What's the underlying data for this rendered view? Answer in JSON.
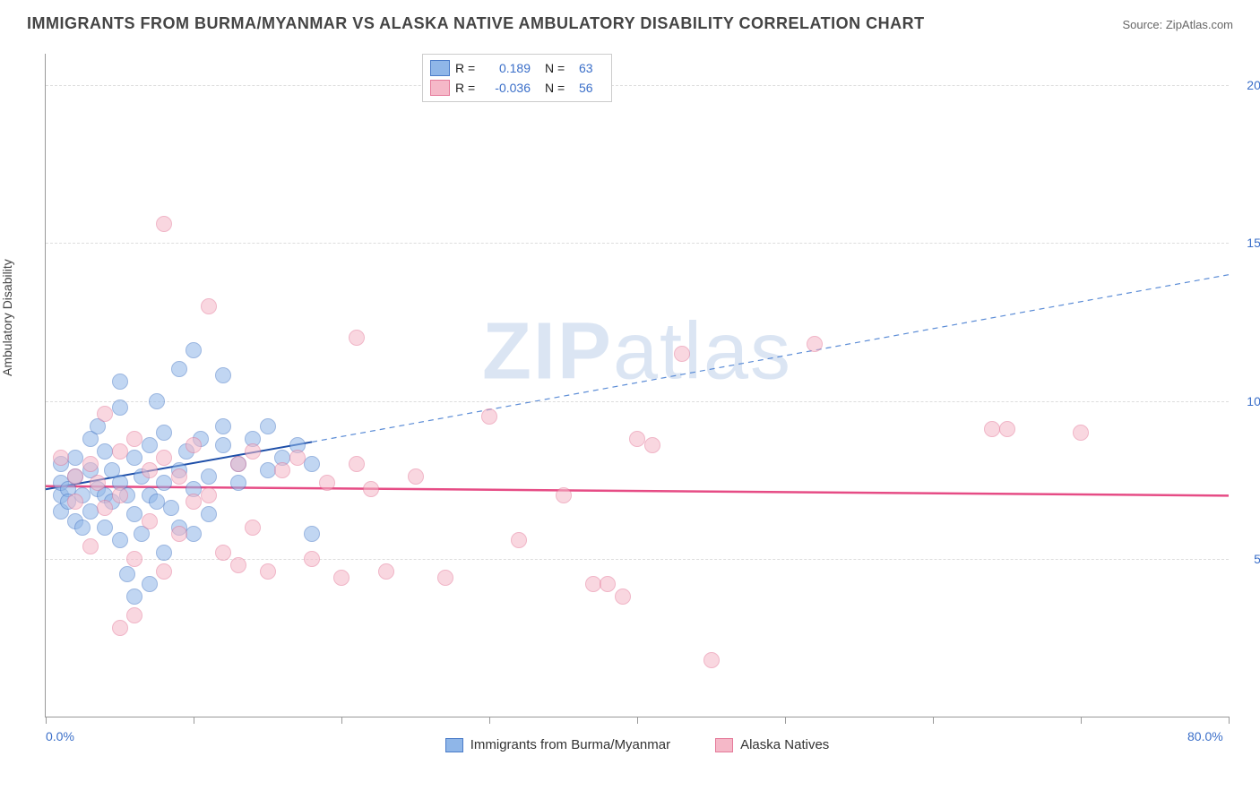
{
  "title": "IMMIGRANTS FROM BURMA/MYANMAR VS ALASKA NATIVE AMBULATORY DISABILITY CORRELATION CHART",
  "source": "Source: ZipAtlas.com",
  "ylabel": "Ambulatory Disability",
  "watermark_bold": "ZIP",
  "watermark_light": "atlas",
  "chart": {
    "type": "scatter",
    "xlim": [
      0,
      80
    ],
    "ylim": [
      0,
      21
    ],
    "x_ticks": [
      0,
      10,
      20,
      30,
      40,
      50,
      60,
      70,
      80
    ],
    "x_tick_labels": {
      "0": "0.0%",
      "80": "80.0%"
    },
    "y_ticks": [
      5,
      10,
      15,
      20
    ],
    "y_tick_labels": [
      "5.0%",
      "10.0%",
      "15.0%",
      "20.0%"
    ],
    "grid_color": "#dddddd",
    "background_color": "#ffffff",
    "axis_color": "#999999",
    "label_color": "#444444",
    "tick_label_color": "#3b6fc9",
    "point_radius": 8,
    "point_opacity": 0.55
  },
  "series": [
    {
      "id": "burma",
      "label": "Immigrants from Burma/Myanmar",
      "fill_color": "#8fb6e8",
      "stroke_color": "#4a7bc8",
      "R_label": "R =",
      "R": "0.189",
      "N_label": "N =",
      "N": "63",
      "trend": {
        "solid": {
          "x1": 0,
          "y1": 7.2,
          "x2": 18,
          "y2": 8.7
        },
        "dashed": {
          "x1": 18,
          "y1": 8.7,
          "x2": 80,
          "y2": 14.0
        },
        "solid_color": "#1d4ea8",
        "solid_width": 2,
        "dashed_color": "#5b8cd6",
        "dashed_width": 1.2,
        "dash": "6,5"
      },
      "points": [
        [
          1,
          7.0
        ],
        [
          1,
          7.4
        ],
        [
          1,
          6.5
        ],
        [
          1,
          8.0
        ],
        [
          1.5,
          7.2
        ],
        [
          1.5,
          6.8
        ],
        [
          2,
          7.6
        ],
        [
          2,
          6.2
        ],
        [
          2,
          8.2
        ],
        [
          2.5,
          7.0
        ],
        [
          2.5,
          6.0
        ],
        [
          3,
          7.8
        ],
        [
          3,
          6.5
        ],
        [
          3,
          8.8
        ],
        [
          3.5,
          7.2
        ],
        [
          3.5,
          9.2
        ],
        [
          4,
          7.0
        ],
        [
          4,
          6.0
        ],
        [
          4,
          8.4
        ],
        [
          4.5,
          6.8
        ],
        [
          4.5,
          7.8
        ],
        [
          5,
          7.4
        ],
        [
          5,
          5.6
        ],
        [
          5,
          9.8
        ],
        [
          5,
          10.6
        ],
        [
          5.5,
          7.0
        ],
        [
          5.5,
          4.5
        ],
        [
          6,
          8.2
        ],
        [
          6,
          6.4
        ],
        [
          6,
          3.8
        ],
        [
          6.5,
          7.6
        ],
        [
          6.5,
          5.8
        ],
        [
          7,
          8.6
        ],
        [
          7,
          7.0
        ],
        [
          7,
          4.2
        ],
        [
          7.5,
          10.0
        ],
        [
          7.5,
          6.8
        ],
        [
          8,
          7.4
        ],
        [
          8,
          9.0
        ],
        [
          8,
          5.2
        ],
        [
          8.5,
          6.6
        ],
        [
          9,
          7.8
        ],
        [
          9,
          11.0
        ],
        [
          9,
          6.0
        ],
        [
          9.5,
          8.4
        ],
        [
          10,
          7.2
        ],
        [
          10,
          11.6
        ],
        [
          10,
          5.8
        ],
        [
          10.5,
          8.8
        ],
        [
          11,
          7.6
        ],
        [
          11,
          6.4
        ],
        [
          12,
          8.6
        ],
        [
          12,
          10.8
        ],
        [
          12,
          9.2
        ],
        [
          13,
          7.4
        ],
        [
          13,
          8.0
        ],
        [
          14,
          8.8
        ],
        [
          15,
          7.8
        ],
        [
          15,
          9.2
        ],
        [
          16,
          8.2
        ],
        [
          17,
          8.6
        ],
        [
          18,
          5.8
        ],
        [
          18,
          8.0
        ]
      ]
    },
    {
      "id": "alaska",
      "label": "Alaska Natives",
      "fill_color": "#f5b8c8",
      "stroke_color": "#e57a9a",
      "R_label": "R =",
      "R": "-0.036",
      "N_label": "N =",
      "N": "56",
      "trend": {
        "solid": {
          "x1": 0,
          "y1": 7.3,
          "x2": 80,
          "y2": 7.0
        },
        "solid_color": "#e64c85",
        "solid_width": 2.5
      },
      "points": [
        [
          1,
          8.2
        ],
        [
          2,
          7.6
        ],
        [
          2,
          6.8
        ],
        [
          3,
          8.0
        ],
        [
          3,
          5.4
        ],
        [
          3.5,
          7.4
        ],
        [
          4,
          9.6
        ],
        [
          4,
          6.6
        ],
        [
          5,
          8.4
        ],
        [
          5,
          7.0
        ],
        [
          5,
          2.8
        ],
        [
          6,
          8.8
        ],
        [
          6,
          5.0
        ],
        [
          6,
          3.2
        ],
        [
          7,
          7.8
        ],
        [
          7,
          6.2
        ],
        [
          8,
          8.2
        ],
        [
          8,
          4.6
        ],
        [
          8,
          15.6
        ],
        [
          9,
          7.6
        ],
        [
          9,
          5.8
        ],
        [
          10,
          8.6
        ],
        [
          10,
          6.8
        ],
        [
          11,
          13.0
        ],
        [
          11,
          7.0
        ],
        [
          12,
          5.2
        ],
        [
          13,
          8.0
        ],
        [
          13,
          4.8
        ],
        [
          14,
          8.4
        ],
        [
          14,
          6.0
        ],
        [
          15,
          4.6
        ],
        [
          16,
          7.8
        ],
        [
          17,
          8.2
        ],
        [
          18,
          5.0
        ],
        [
          19,
          7.4
        ],
        [
          20,
          4.4
        ],
        [
          21,
          8.0
        ],
        [
          21,
          12.0
        ],
        [
          22,
          7.2
        ],
        [
          23,
          4.6
        ],
        [
          25,
          7.6
        ],
        [
          27,
          4.4
        ],
        [
          30,
          9.5
        ],
        [
          32,
          5.6
        ],
        [
          35,
          7.0
        ],
        [
          37,
          4.2
        ],
        [
          38,
          4.2
        ],
        [
          39,
          3.8
        ],
        [
          40,
          8.8
        ],
        [
          41,
          8.6
        ],
        [
          43,
          11.5
        ],
        [
          45,
          1.8
        ],
        [
          52,
          11.8
        ],
        [
          64,
          9.1
        ],
        [
          65,
          9.1
        ],
        [
          70,
          9.0
        ]
      ]
    }
  ],
  "bottom_legend": [
    {
      "label": "Immigrants from Burma/Myanmar",
      "fill": "#8fb6e8",
      "stroke": "#4a7bc8"
    },
    {
      "label": "Alaska Natives",
      "fill": "#f5b8c8",
      "stroke": "#e57a9a"
    }
  ]
}
